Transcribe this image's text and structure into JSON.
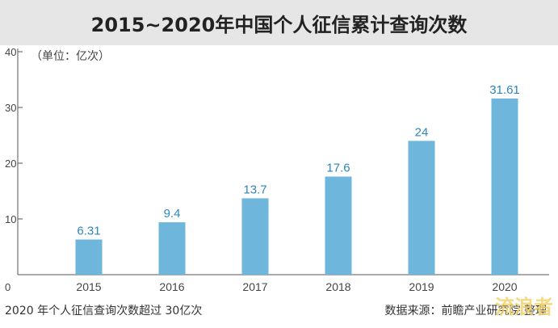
{
  "chart_data": {
    "type": "bar",
    "title": "2015~2020年中国个人征信累计查询次数",
    "unit_note": "（单位：亿次）",
    "categories": [
      "2015",
      "2016",
      "2017",
      "2018",
      "2019",
      "2020"
    ],
    "values": [
      6.31,
      9.4,
      13.7,
      17.6,
      24,
      31.61
    ],
    "value_labels": [
      "6.31",
      "9.4",
      "13.7",
      "17.6",
      "24",
      "31.61"
    ],
    "ylim": [
      0,
      40
    ],
    "yticks": [
      "0",
      "10",
      "20",
      "30",
      "40"
    ],
    "grid": false,
    "bar_color": "#6fb6dc",
    "label_color": "#2e86b8"
  },
  "footer": {
    "left": "2020 年个人征信查询次数超过 30亿次",
    "right": "数据来源：前瞻产业研究院  整理"
  },
  "watermark": "流浪者"
}
